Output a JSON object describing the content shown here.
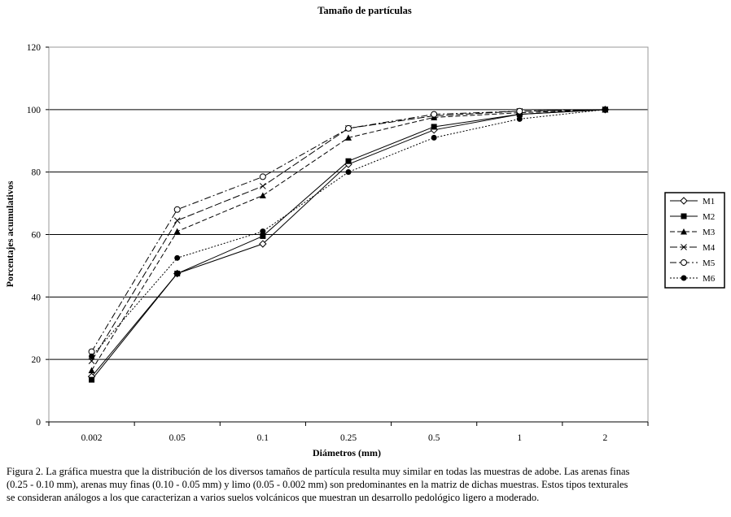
{
  "chart_data": {
    "type": "line",
    "title": "Tamaño de partículas",
    "xlabel": "Diámetros (mm)",
    "ylabel": "Porcentajes acumulativos",
    "categories": [
      "0.002",
      "0.05",
      "0.1",
      "0.25",
      "0.5",
      "1",
      "2"
    ],
    "ylim": [
      0,
      120
    ],
    "yticks": [
      "0",
      "20",
      "40",
      "60",
      "80",
      "100",
      "120"
    ],
    "grid": "horizontal",
    "legend_position": "right",
    "series": [
      {
        "name": "M1",
        "marker": "diamond-open",
        "dash": "solid",
        "values": [
          14.5,
          47.5,
          57,
          82.5,
          93.5,
          98.5,
          100
        ]
      },
      {
        "name": "M2",
        "marker": "square-filled",
        "dash": "solid",
        "values": [
          13.5,
          47.5,
          59.5,
          83.5,
          94.5,
          98.5,
          100
        ]
      },
      {
        "name": "M3",
        "marker": "triangle-filled",
        "dash": "dash",
        "values": [
          16.5,
          61,
          72.5,
          91,
          97.5,
          99,
          100
        ]
      },
      {
        "name": "M4",
        "marker": "x",
        "dash": "longdash",
        "values": [
          19.5,
          64.5,
          75.5,
          94,
          98,
          99.5,
          100
        ]
      },
      {
        "name": "M5",
        "marker": "circle-open",
        "dash": "dashdot",
        "values": [
          22.5,
          68,
          78.5,
          94,
          98.5,
          99.5,
          100
        ]
      },
      {
        "name": "M6",
        "marker": "circle-filled",
        "dash": "dot",
        "values": [
          21,
          52.5,
          61,
          80,
          91,
          97,
          100
        ]
      }
    ]
  },
  "caption": {
    "line1": "Figura 2. La gráfica muestra que la distribución de los diversos tamaños de partícula resulta muy similar en todas las muestras de adobe. Las arenas finas",
    "line2": "(0.25 - 0.10 mm), arenas muy finas (0.10 - 0.05 mm) y limo (0.05 - 0.002 mm) son predominantes en la matriz de dichas muestras. Estos tipos texturales",
    "line3": "se consideran análogos a los que caracterizan a varios suelos volcánicos que muestran un desarrollo pedológico ligero a moderado."
  }
}
